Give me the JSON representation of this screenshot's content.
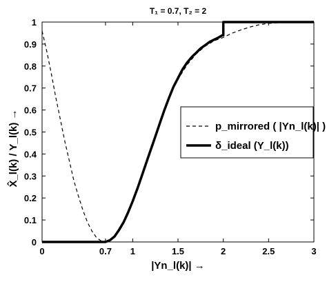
{
  "chart_data": {
    "type": "line",
    "title": "T₁ = 0.7, T₂ = 2",
    "xlabel": "|Yn_l(k)| →",
    "ylabel": "X̂_l(k) / Y_l(k) →",
    "xlim": [
      0,
      3
    ],
    "ylim": [
      0,
      1
    ],
    "x_ticks": [
      0,
      0.7,
      1,
      1.5,
      2,
      2.5,
      3
    ],
    "x_tick_labels": [
      "0",
      "0.7",
      "1",
      "1.5",
      "2",
      "2.5",
      "3"
    ],
    "y_ticks": [
      0,
      0.1,
      0.2,
      0.3,
      0.4,
      0.5,
      0.6,
      0.7,
      0.8,
      0.9,
      1
    ],
    "y_tick_labels": [
      "0",
      "0.1",
      "0.2",
      "0.3",
      "0.4",
      "0.5",
      "0.6",
      "0.7",
      "0.8",
      "0.9",
      "1"
    ],
    "legend_position": "right",
    "series": [
      {
        "name": "p_mirrored ( |Yn_l(k)| )",
        "style": "dashed",
        "color": "#000000",
        "x": [
          0,
          0.05,
          0.1,
          0.15,
          0.2,
          0.25,
          0.3,
          0.35,
          0.4,
          0.45,
          0.5,
          0.55,
          0.6,
          0.65,
          0.7,
          1.4,
          1.5,
          1.6,
          1.7,
          1.8,
          1.9,
          2.0,
          2.1,
          2.2,
          2.3,
          2.4,
          2.5,
          2.6,
          2.7,
          2.8,
          2.9,
          3.0
        ],
        "y": [
          0.96,
          0.87,
          0.77,
          0.66,
          0.56,
          0.46,
          0.37,
          0.28,
          0.21,
          0.145,
          0.09,
          0.05,
          0.02,
          0.005,
          0.0,
          0.66,
          0.74,
          0.805,
          0.855,
          0.89,
          0.915,
          0.93,
          0.95,
          0.965,
          0.978,
          0.988,
          0.994,
          0.997,
          0.999,
          1.0,
          1.0,
          1.0
        ]
      },
      {
        "name": "δ_ideal (Y_l(k))",
        "style": "solid",
        "color": "#000000",
        "x": [
          0,
          0.7,
          0.75,
          0.8,
          0.85,
          0.9,
          0.95,
          1.0,
          1.05,
          1.1,
          1.15,
          1.2,
          1.25,
          1.3,
          1.35,
          1.4,
          1.45,
          1.5,
          1.55,
          1.6,
          1.65,
          1.7,
          1.75,
          1.8,
          1.85,
          1.9,
          1.95,
          1.99,
          2.0,
          2.0,
          2.5,
          3.0
        ],
        "y": [
          0,
          0,
          0.008,
          0.025,
          0.055,
          0.09,
          0.135,
          0.185,
          0.24,
          0.3,
          0.36,
          0.42,
          0.48,
          0.54,
          0.6,
          0.655,
          0.705,
          0.745,
          0.785,
          0.815,
          0.84,
          0.86,
          0.88,
          0.895,
          0.91,
          0.92,
          0.93,
          0.94,
          0.94,
          1.0,
          1.0,
          1.0
        ]
      }
    ]
  }
}
